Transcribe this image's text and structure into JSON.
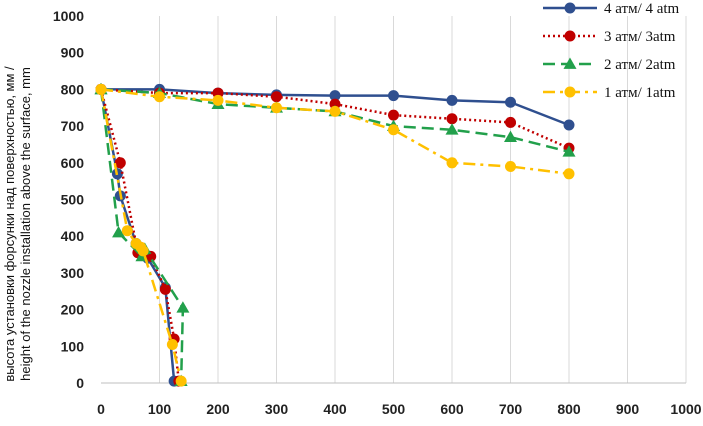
{
  "chart_data": {
    "type": "line",
    "title": "",
    "xlabel": "",
    "ylabel_lines": [
      "высота   установки форсунки над поверхностью, мм /",
      "height of the nozzle installation above the surface, mm"
    ],
    "xlim": [
      0,
      1000
    ],
    "ylim": [
      0,
      1000
    ],
    "x_ticks": [
      0,
      100,
      200,
      300,
      400,
      500,
      600,
      700,
      800,
      900,
      1000
    ],
    "y_ticks": [
      0,
      100,
      200,
      300,
      400,
      500,
      600,
      700,
      800,
      900,
      1000
    ],
    "grid": "vertical",
    "legend_position": "top-right",
    "series": [
      {
        "name": "4 атм/ 4 atm",
        "color": "#2f4f8f",
        "dash": "solid",
        "marker": "circle",
        "points": [
          [
            0,
            800
          ],
          [
            100,
            800
          ],
          [
            200,
            790
          ],
          [
            300,
            785
          ],
          [
            400,
            783
          ],
          [
            500,
            783
          ],
          [
            600,
            770
          ],
          [
            700,
            765
          ],
          [
            800,
            703
          ]
        ],
        "branch": [
          [
            0,
            800
          ],
          [
            28,
            570
          ],
          [
            33,
            510
          ],
          [
            60,
            380
          ],
          [
            70,
            355
          ],
          [
            80,
            340
          ],
          [
            110,
            260
          ],
          [
            125,
            5
          ]
        ]
      },
      {
        "name": "3 атм/ 3atm",
        "color": "#c00000",
        "dash": "dot",
        "marker": "circle",
        "points": [
          [
            0,
            800
          ],
          [
            100,
            790
          ],
          [
            200,
            790
          ],
          [
            300,
            780
          ],
          [
            400,
            760
          ],
          [
            500,
            730
          ],
          [
            600,
            720
          ],
          [
            700,
            710
          ],
          [
            800,
            640
          ]
        ],
        "branch": [
          [
            0,
            800
          ],
          [
            33,
            600
          ],
          [
            63,
            355
          ],
          [
            85,
            345
          ],
          [
            110,
            255
          ],
          [
            125,
            120
          ],
          [
            133,
            5
          ]
        ]
      },
      {
        "name": "2 атм/ 2atm",
        "color": "#22a04b",
        "dash": "dash",
        "marker": "triangle",
        "points": [
          [
            0,
            800
          ],
          [
            100,
            790
          ],
          [
            200,
            760
          ],
          [
            300,
            750
          ],
          [
            400,
            740
          ],
          [
            500,
            700
          ],
          [
            600,
            690
          ],
          [
            700,
            670
          ],
          [
            800,
            630
          ]
        ],
        "branch": [
          [
            0,
            800
          ],
          [
            30,
            410
          ],
          [
            70,
            345
          ],
          [
            75,
            365
          ],
          [
            140,
            205
          ],
          [
            137,
            5
          ]
        ]
      },
      {
        "name": "1 атм/ 1atm",
        "color": "#ffc000",
        "dash": "dashdot",
        "marker": "circle",
        "points": [
          [
            0,
            800
          ],
          [
            100,
            780
          ],
          [
            200,
            770
          ],
          [
            300,
            750
          ],
          [
            400,
            740
          ],
          [
            500,
            690
          ],
          [
            600,
            600
          ],
          [
            700,
            590
          ],
          [
            800,
            570
          ]
        ],
        "branch": [
          [
            0,
            800
          ],
          [
            45,
            415
          ],
          [
            60,
            380
          ],
          [
            68,
            370
          ],
          [
            72,
            360
          ],
          [
            122,
            105
          ],
          [
            137,
            5
          ]
        ]
      }
    ]
  }
}
